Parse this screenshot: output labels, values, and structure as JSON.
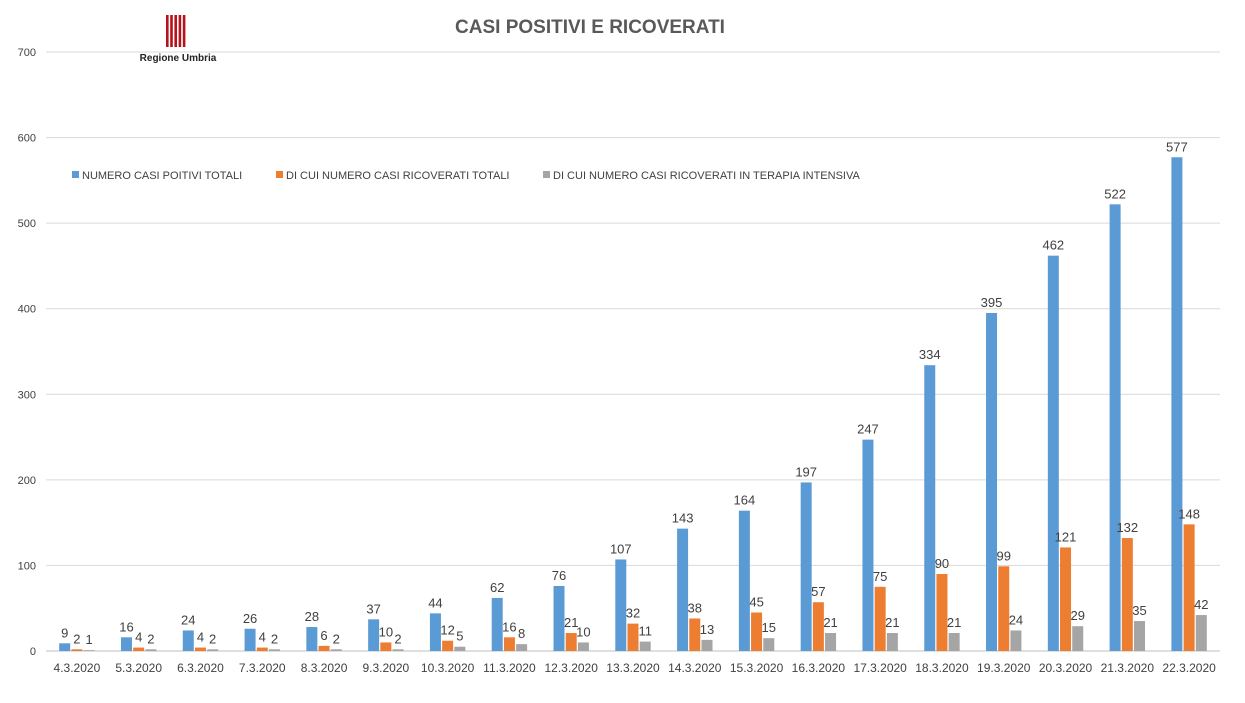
{
  "chart_data": {
    "type": "bar",
    "title": "CASI POSITIVI E RICOVERATI",
    "xlabel": "",
    "ylabel": "",
    "ylim": [
      0,
      700
    ],
    "yticks": [
      0,
      100,
      200,
      300,
      400,
      500,
      600,
      700
    ],
    "grid": true,
    "legend_position": "top-left",
    "categories": [
      "4.3.2020",
      "5.3.2020",
      "6.3.2020",
      "7.3.2020",
      "8.3.2020",
      "9.3.2020",
      "10.3.2020",
      "11.3.2020",
      "12.3.2020",
      "13.3.2020",
      "14.3.2020",
      "15.3.2020",
      "16.3.2020",
      "17.3.2020",
      "18.3.2020",
      "19.3.2020",
      "20.3.2020",
      "21.3.2020",
      "22.3.2020"
    ],
    "series": [
      {
        "name": "NUMERO CASI POITIVI TOTALI",
        "color": "#5b9bd5",
        "values": [
          9,
          16,
          24,
          26,
          28,
          37,
          44,
          62,
          76,
          107,
          143,
          164,
          197,
          247,
          334,
          395,
          462,
          522,
          577
        ]
      },
      {
        "name": "DI CUI NUMERO CASI RICOVERATI TOTALI",
        "color": "#ed7d31",
        "values": [
          2,
          4,
          4,
          4,
          6,
          10,
          12,
          16,
          21,
          32,
          38,
          45,
          57,
          75,
          90,
          99,
          121,
          132,
          148
        ]
      },
      {
        "name": "DI CUI NUMERO CASI RICOVERATI IN TERAPIA INTENSIVA",
        "color": "#a5a5a5",
        "values": [
          1,
          2,
          2,
          2,
          2,
          2,
          5,
          8,
          10,
          11,
          13,
          15,
          21,
          21,
          21,
          24,
          29,
          35,
          42
        ]
      }
    ]
  },
  "logo": {
    "text": "Regione Umbria",
    "color": "#b5121b",
    "icon": "regione-umbria-logo-icon"
  }
}
